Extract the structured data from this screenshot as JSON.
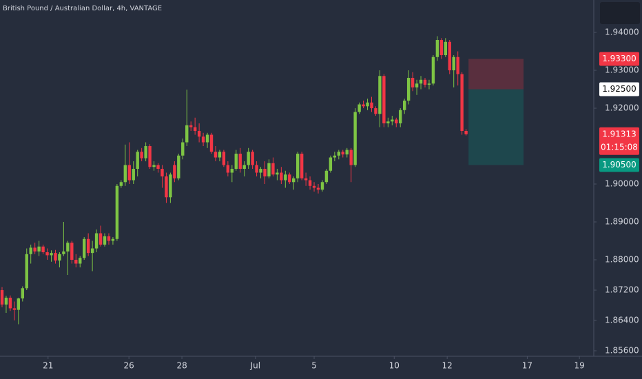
{
  "chart_data": {
    "type": "candlestick",
    "title": "British Pound / Australian Dollar, 4h, VANTAGE",
    "up_color": "#7ec544",
    "down_color": "#f23645",
    "ylim": [
      1.85455,
      1.94855
    ],
    "yticks": [
      {
        "value": 1.94,
        "label": "1.94000"
      },
      {
        "value": 1.93,
        "label": "1.93000"
      },
      {
        "value": 1.92,
        "label": "1.92000"
      },
      {
        "value": 1.9,
        "label": "1.90000"
      },
      {
        "value": 1.89,
        "label": "1.89000"
      },
      {
        "value": 1.88,
        "label": "1.88000"
      },
      {
        "value": 1.872,
        "label": "1.87200"
      },
      {
        "value": 1.864,
        "label": "1.86400"
      },
      {
        "value": 1.856,
        "label": "1.85600"
      }
    ],
    "xlim": [
      -0.5,
      144.1
    ],
    "xticks": [
      {
        "value": 11.2,
        "label": "21"
      },
      {
        "value": 30.9,
        "label": "26"
      },
      {
        "value": 43.8,
        "label": "28"
      },
      {
        "value": 61.7,
        "label": "Jul"
      },
      {
        "value": 76.0,
        "label": "5"
      },
      {
        "value": 95.5,
        "label": "10"
      },
      {
        "value": 108.4,
        "label": "12"
      },
      {
        "value": 127.9,
        "label": "17"
      },
      {
        "value": 140.6,
        "label": "19"
      }
    ],
    "candles": [
      [
        1.872,
        1.8728,
        1.8675,
        1.8682
      ],
      [
        1.8682,
        1.8705,
        1.866,
        1.87
      ],
      [
        1.87,
        1.8706,
        1.8665,
        1.8672
      ],
      [
        1.8672,
        1.869,
        1.864,
        1.8668
      ],
      [
        1.8668,
        1.87,
        1.863,
        1.8698
      ],
      [
        1.8698,
        1.873,
        1.869,
        1.8725
      ],
      [
        1.8725,
        1.883,
        1.872,
        1.8815
      ],
      [
        1.8815,
        1.884,
        1.879,
        1.8832
      ],
      [
        1.8832,
        1.8845,
        1.8815,
        1.8822
      ],
      [
        1.8822,
        1.885,
        1.881,
        1.8835
      ],
      [
        1.8835,
        1.884,
        1.8815,
        1.882
      ],
      [
        1.882,
        1.883,
        1.88,
        1.8812
      ],
      [
        1.8812,
        1.8825,
        1.8795,
        1.8818
      ],
      [
        1.8818,
        1.8826,
        1.879,
        1.8798
      ],
      [
        1.8798,
        1.882,
        1.878,
        1.8815
      ],
      [
        1.8815,
        1.89,
        1.881,
        1.8822
      ],
      [
        1.8822,
        1.885,
        1.876,
        1.8845
      ],
      [
        1.8845,
        1.885,
        1.879,
        1.88
      ],
      [
        1.88,
        1.8815,
        1.878,
        1.879
      ],
      [
        1.879,
        1.881,
        1.878,
        1.8805
      ],
      [
        1.8805,
        1.886,
        1.88,
        1.8855
      ],
      [
        1.8855,
        1.887,
        1.881,
        1.8818
      ],
      [
        1.8818,
        1.885,
        1.877,
        1.883
      ],
      [
        1.883,
        1.888,
        1.882,
        1.887
      ],
      [
        1.887,
        1.889,
        1.8835,
        1.884
      ],
      [
        1.884,
        1.887,
        1.8835,
        1.8862
      ],
      [
        1.8862,
        1.887,
        1.884,
        1.885
      ],
      [
        1.885,
        1.886,
        1.884,
        1.8855
      ],
      [
        1.8855,
        1.9,
        1.885,
        1.8995
      ],
      [
        1.8995,
        1.901,
        1.899,
        1.9005
      ],
      [
        1.9005,
        1.9104,
        1.8995,
        1.905
      ],
      [
        1.905,
        1.911,
        1.9,
        1.901
      ],
      [
        1.901,
        1.906,
        1.9,
        1.904
      ],
      [
        1.904,
        1.909,
        1.902,
        1.9085
      ],
      [
        1.9085,
        1.9095,
        1.906,
        1.9068
      ],
      [
        1.9068,
        1.911,
        1.906,
        1.91
      ],
      [
        1.91,
        1.9105,
        1.904,
        1.9045
      ],
      [
        1.9045,
        1.906,
        1.9035,
        1.905
      ],
      [
        1.905,
        1.9055,
        1.903,
        1.904
      ],
      [
        1.904,
        1.905,
        1.899,
        1.902
      ],
      [
        1.902,
        1.903,
        1.895,
        1.8965
      ],
      [
        1.8965,
        1.903,
        1.895,
        1.9025
      ],
      [
        1.905,
        1.906,
        1.9005,
        1.9015
      ],
      [
        1.9015,
        1.908,
        1.901,
        1.9075
      ],
      [
        1.9075,
        1.912,
        1.9065,
        1.911
      ],
      [
        1.911,
        1.9249,
        1.91,
        1.9155
      ],
      [
        1.9155,
        1.9165,
        1.914,
        1.915
      ],
      [
        1.915,
        1.9175,
        1.913,
        1.914
      ],
      [
        1.914,
        1.916,
        1.911,
        1.9125
      ],
      [
        1.9125,
        1.9135,
        1.91,
        1.911
      ],
      [
        1.911,
        1.9135,
        1.9095,
        1.913
      ],
      [
        1.913,
        1.9135,
        1.908,
        1.9085
      ],
      [
        1.9085,
        1.91,
        1.906,
        1.907
      ],
      [
        1.907,
        1.909,
        1.906,
        1.9085
      ],
      [
        1.9085,
        1.909,
        1.9045,
        1.905
      ],
      [
        1.905,
        1.906,
        1.902,
        1.903
      ],
      [
        1.903,
        1.905,
        1.9005,
        1.904
      ],
      [
        1.904,
        1.909,
        1.9035,
        1.908
      ],
      [
        1.908,
        1.9095,
        1.903,
        1.904
      ],
      [
        1.904,
        1.906,
        1.902,
        1.905
      ],
      [
        1.905,
        1.9095,
        1.904,
        1.9085
      ],
      [
        1.9085,
        1.909,
        1.904,
        1.905
      ],
      [
        1.905,
        1.906,
        1.902,
        1.903
      ],
      [
        1.903,
        1.9045,
        1.9015,
        1.904
      ],
      [
        1.904,
        1.906,
        1.9,
        1.902
      ],
      [
        1.902,
        1.9065,
        1.9015,
        1.9055
      ],
      [
        1.9055,
        1.907,
        1.902,
        1.9025
      ],
      [
        1.9025,
        1.904,
        1.901,
        1.903
      ],
      [
        1.903,
        1.9045,
        1.9,
        1.901
      ],
      [
        1.901,
        1.9035,
        1.899,
        1.9025
      ],
      [
        1.9025,
        1.903,
        1.9,
        1.9005
      ],
      [
        1.9005,
        1.902,
        1.8985,
        1.9015
      ],
      [
        1.9015,
        1.9085,
        1.9005,
        1.908
      ],
      [
        1.908,
        1.9085,
        1.901,
        1.9015
      ],
      [
        1.9015,
        1.903,
        1.8995,
        1.901
      ],
      [
        1.901,
        1.902,
        1.8985,
        1.8995
      ],
      [
        1.8995,
        1.9005,
        1.898,
        1.899
      ],
      [
        1.899,
        1.9,
        1.8975,
        1.8985
      ],
      [
        1.8985,
        1.901,
        1.898,
        1.9005
      ],
      [
        1.9005,
        1.904,
        1.9,
        1.9035
      ],
      [
        1.9035,
        1.9075,
        1.903,
        1.907
      ],
      [
        1.907,
        1.9085,
        1.906,
        1.9075
      ],
      [
        1.9075,
        1.909,
        1.9065,
        1.9085
      ],
      [
        1.9085,
        1.909,
        1.907,
        1.9078
      ],
      [
        1.9078,
        1.9095,
        1.907,
        1.909
      ],
      [
        1.909,
        1.9095,
        1.9005,
        1.905
      ],
      [
        1.905,
        1.92,
        1.9045,
        1.919
      ],
      [
        1.919,
        1.9215,
        1.9185,
        1.921
      ],
      [
        1.921,
        1.922,
        1.92,
        1.9205
      ],
      [
        1.9205,
        1.9225,
        1.9195,
        1.9215
      ],
      [
        1.9215,
        1.923,
        1.919,
        1.92
      ],
      [
        1.92,
        1.9205,
        1.918,
        1.9185
      ],
      [
        1.9185,
        1.93,
        1.915,
        1.9285
      ],
      [
        1.9285,
        1.929,
        1.915,
        1.916
      ],
      [
        1.916,
        1.9175,
        1.915,
        1.9165
      ],
      [
        1.9165,
        1.918,
        1.9155,
        1.917
      ],
      [
        1.917,
        1.9175,
        1.915,
        1.916
      ],
      [
        1.916,
        1.92,
        1.915,
        1.9195
      ],
      [
        1.9195,
        1.9225,
        1.9185,
        1.922
      ],
      [
        1.922,
        1.93,
        1.921,
        1.928
      ],
      [
        1.928,
        1.9295,
        1.9245,
        1.9255
      ],
      [
        1.9255,
        1.9275,
        1.9235,
        1.9265
      ],
      [
        1.9265,
        1.9285,
        1.925,
        1.9275
      ],
      [
        1.9275,
        1.928,
        1.9255,
        1.9262
      ],
      [
        1.9262,
        1.9275,
        1.925,
        1.9265
      ],
      [
        1.9265,
        1.934,
        1.926,
        1.9335
      ],
      [
        1.9335,
        1.939,
        1.9325,
        1.938
      ],
      [
        1.938,
        1.9385,
        1.933,
        1.934
      ],
      [
        1.934,
        1.9385,
        1.9335,
        1.9375
      ],
      [
        1.9375,
        1.938,
        1.929,
        1.93
      ],
      [
        1.93,
        1.934,
        1.9255,
        1.9335
      ],
      [
        1.9335,
        1.935,
        1.926,
        1.929
      ],
      [
        1.929,
        1.9295,
        1.913,
        1.914
      ],
      [
        1.914,
        1.9145,
        1.9128,
        1.91313
      ]
    ],
    "position": {
      "x": [
        113.6,
        127.0
      ],
      "stop": 1.933,
      "entry": 1.925,
      "target": 1.905
    },
    "price_labels": [
      {
        "value": 1.933,
        "label": "1.93300",
        "color": "#f23645",
        "text_color": "#ffffff"
      },
      {
        "value": 1.925,
        "label": "1.92500",
        "color": "#ffffff",
        "text_color": "#000000"
      },
      {
        "value": 1.91313,
        "label": "1.91313",
        "sub": "01:15:08",
        "color": "#f23645",
        "text_color": "#ffffff"
      },
      {
        "value": 1.905,
        "label": "1.90500",
        "color": "#089981",
        "text_color": "#ffffff"
      }
    ]
  }
}
